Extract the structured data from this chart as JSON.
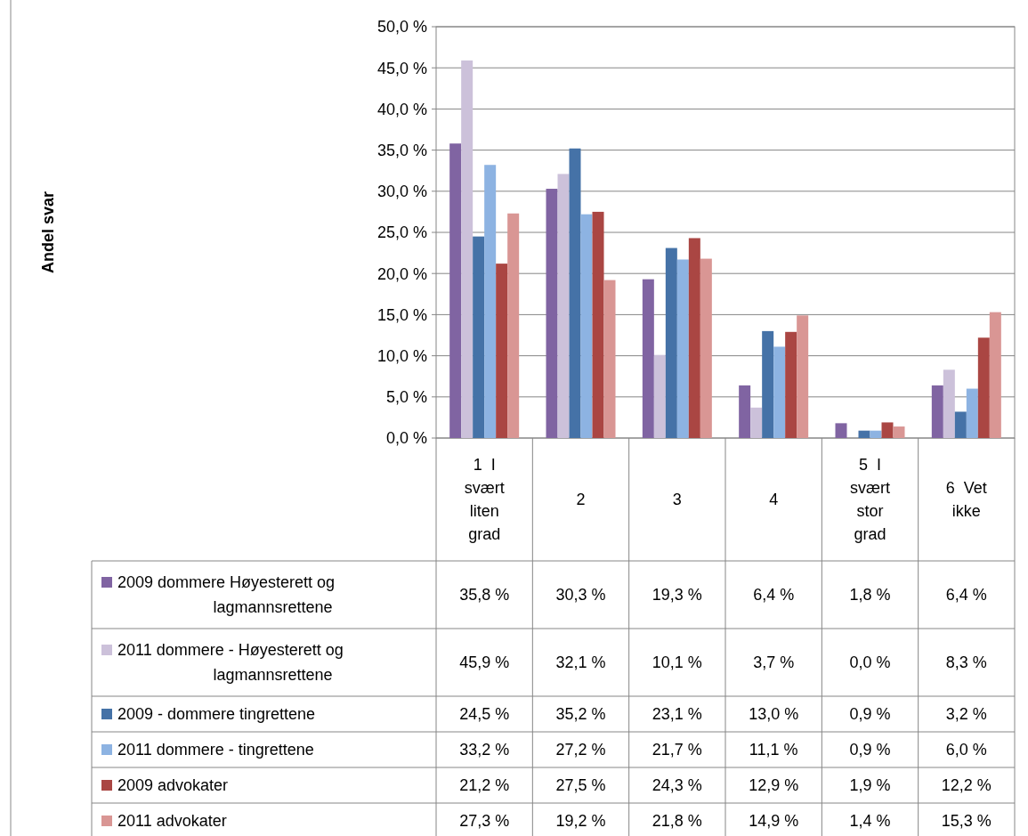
{
  "chart_data": {
    "type": "bar",
    "annotations": [
      "Andel svar"
    ],
    "categories": [
      "1  I svært liten grad",
      "2",
      "3",
      "4",
      "5  I svært stor grad",
      "6  Vet ikke"
    ],
    "series": [
      {
        "name": "2009 dommere Høyesterett og lagmannsrettene",
        "color": "#8064a2",
        "values": [
          35.8,
          30.3,
          19.3,
          6.4,
          1.8,
          6.4
        ],
        "value_labels": [
          "35,8 %",
          "30,3 %",
          "19,3 %",
          "6,4 %",
          "1,8 %",
          "6,4 %"
        ]
      },
      {
        "name": "2011 dommere - Høyesterett og lagmannsrettene",
        "color": "#ccc1da",
        "values": [
          45.9,
          32.1,
          10.1,
          3.7,
          0.0,
          8.3
        ],
        "value_labels": [
          "45,9 %",
          "32,1 %",
          "10,1 %",
          "3,7 %",
          "0,0 %",
          "8,3 %"
        ]
      },
      {
        "name": "2009 - dommere tingrettene",
        "color": "#4572a7",
        "values": [
          24.5,
          35.2,
          23.1,
          13.0,
          0.9,
          3.2
        ],
        "value_labels": [
          "24,5 %",
          "35,2 %",
          "23,1 %",
          "13,0 %",
          "0,9 %",
          "3,2 %"
        ]
      },
      {
        "name": "2011 dommere - tingrettene",
        "color": "#8db3e2",
        "values": [
          33.2,
          27.2,
          21.7,
          11.1,
          0.9,
          6.0
        ],
        "value_labels": [
          "33,2 %",
          "27,2 %",
          "21,7 %",
          "11,1 %",
          "0,9 %",
          "6,0 %"
        ]
      },
      {
        "name": "2009 advokater",
        "color": "#aa4643",
        "values": [
          21.2,
          27.5,
          24.3,
          12.9,
          1.9,
          12.2
        ],
        "value_labels": [
          "21,2 %",
          "27,5 %",
          "24,3 %",
          "12,9 %",
          "1,9 %",
          "12,2 %"
        ]
      },
      {
        "name": "2011 advokater",
        "color": "#d99694",
        "values": [
          27.3,
          19.2,
          21.8,
          14.9,
          1.4,
          15.3
        ],
        "value_labels": [
          "27,3 %",
          "19,2 %",
          "21,8 %",
          "14,9 %",
          "1,4 %",
          "15,3 %"
        ]
      }
    ],
    "ylim": [
      0,
      50
    ],
    "yticks": [
      {
        "value": 0,
        "label": "0,0 %"
      },
      {
        "value": 5,
        "label": "5,0 %"
      },
      {
        "value": 10,
        "label": "10,0 %"
      },
      {
        "value": 15,
        "label": "15,0 %"
      },
      {
        "value": 20,
        "label": "20,0 %"
      },
      {
        "value": 25,
        "label": "25,0 %"
      },
      {
        "value": 30,
        "label": "30,0 %"
      },
      {
        "value": 35,
        "label": "35,0 %"
      },
      {
        "value": 40,
        "label": "40,0 %"
      },
      {
        "value": 45,
        "label": "45,0 %"
      },
      {
        "value": 50,
        "label": "50,0 %"
      }
    ],
    "grid": "y",
    "legend": "bottom"
  }
}
